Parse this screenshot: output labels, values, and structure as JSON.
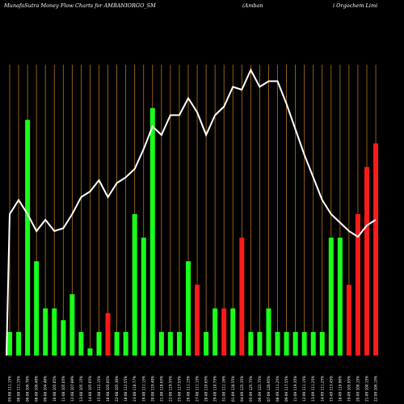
{
  "header": {
    "title_left": "MunafaSutra  Money Flow  Charts for AMBANIORGO_SM",
    "title_mid": "(Amban",
    "title_right": "i  Orgochem Limi"
  },
  "colors": {
    "background": "#000000",
    "grid": "#b8741a",
    "up": "#19ff19",
    "down": "#ff1a1a",
    "line": "#ffffff"
  },
  "chart_data": {
    "type": "bar",
    "description_series": [
      "money_flow_bars",
      "price_line"
    ],
    "x": [
      "05-08 111.15%",
      "06-08 111.15%",
      "06-08 106.70%",
      "08-08 106.40%",
      "09-08 104.40%",
      "10-08 105.05%",
      "11-08 105.05%",
      "12-08 107.89%",
      "13-08 105.15%",
      "14-08 105.05%",
      "15-08 112.15%",
      "18-08 105.05%",
      "22-08 105.30%",
      "18-08 112.55%",
      "23-08 118.77%",
      "19-08 111.15%",
      "20-08 119.40%",
      "21-08 118.65%",
      "22-08 119.55%",
      "25-08 117.55%",
      "26-08 111.15%",
      "27-08 111.15%",
      "28-08 110.65%",
      "29-08 110.75%",
      "31-08 111.16%",
      "01-09 128.55%",
      "04-09 125.35%",
      "05-09 125.75%",
      "06-09 122.75%",
      "07-09 120.95%",
      "08-09 111.25%",
      "09-09 117.55%",
      "11-09 119.35%",
      "12-09 111.15%",
      "13-09 111.25%",
      "14-09 111.25%",
      "15-09 113.45%",
      "18-09 110.90%",
      "19-09 105.95%",
      "20-09 100.15%",
      "21-09 100.15%",
      "22-09 106.15%"
    ],
    "flow_values": [
      1,
      1,
      10,
      4,
      2,
      2,
      1.5,
      2.6,
      1,
      0.3,
      1,
      1.8,
      1,
      1,
      6,
      5,
      10.5,
      1,
      1,
      1,
      4,
      3,
      1,
      2,
      2,
      2,
      5,
      1,
      1,
      2,
      1,
      1,
      1,
      1,
      1,
      1,
      5,
      5,
      3,
      6,
      8,
      9
    ],
    "flow_colors": [
      "up",
      "up",
      "up",
      "up",
      "up",
      "up",
      "up",
      "up",
      "up",
      "up",
      "up",
      "down",
      "up",
      "up",
      "up",
      "up",
      "up",
      "up",
      "up",
      "up",
      "up",
      "down",
      "up",
      "up",
      "down",
      "up",
      "down",
      "up",
      "up",
      "up",
      "up",
      "up",
      "up",
      "up",
      "up",
      "up",
      "up",
      "up",
      "down",
      "down",
      "down",
      "down"
    ],
    "price_values": [
      105,
      107.5,
      105,
      102,
      104,
      102,
      102.5,
      105,
      108,
      109,
      111,
      108,
      110.5,
      111.5,
      113,
      116.5,
      120.5,
      119,
      122.5,
      122.5,
      125.5,
      123,
      119,
      122.5,
      124,
      127.5,
      127,
      130.5,
      127.5,
      128.5,
      128.5,
      124.5,
      120,
      115.5,
      111.5,
      107.5,
      105,
      103.5,
      102,
      101,
      103,
      104
    ],
    "y_flow_max": 12,
    "y_price_range": [
      80,
      135
    ]
  }
}
